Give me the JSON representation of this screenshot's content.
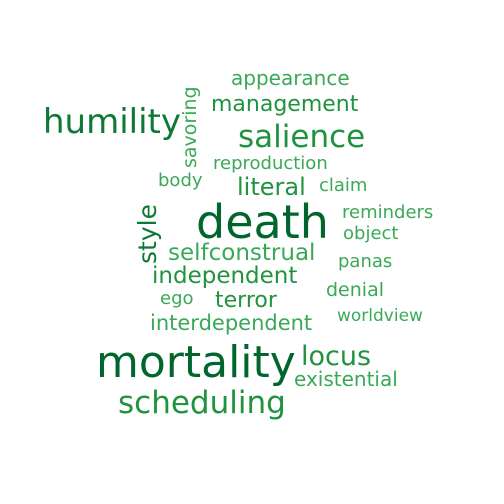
{
  "colors": {
    "darkest": "#00662e",
    "dark": "#0b7a34",
    "mid": "#21933f",
    "light": "#3aa957"
  },
  "words": {
    "death": "death",
    "mortality": "mortality",
    "scheduling": "scheduling",
    "humility": "humility",
    "salience": "salience",
    "style": "style",
    "management": "management",
    "appearance": "appearance",
    "savoring": "savoring",
    "reproduction": "reproduction",
    "body": "body",
    "literal": "literal",
    "claim": "claim",
    "reminders": "reminders",
    "object": "object",
    "selfconstrual": "selfconstrual",
    "independent": "independent",
    "panas": "panas",
    "denial": "denial",
    "ego": "ego",
    "terror": "terror",
    "interdependent": "interdependent",
    "worldview": "worldview",
    "locus": "locus",
    "existential": "existential"
  }
}
